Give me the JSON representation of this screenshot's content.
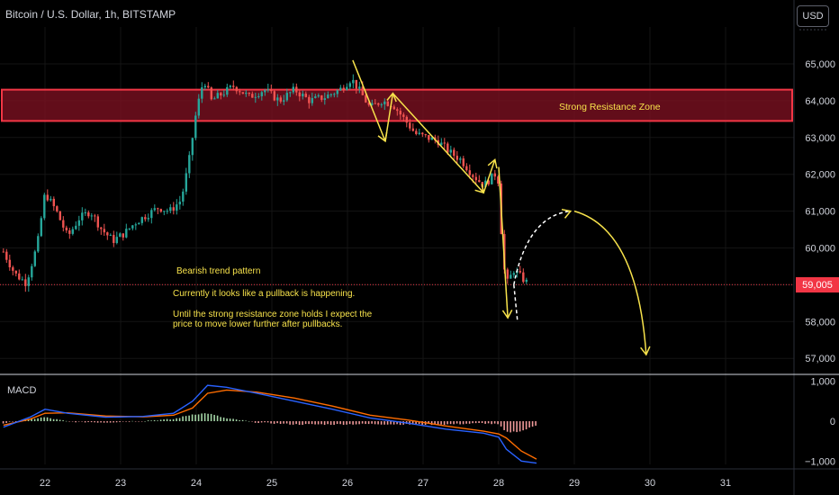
{
  "header": {
    "title": "Bitcoin / U.S. Dollar, 1h, BITSTAMP",
    "currency_button": "USD"
  },
  "annotations": {
    "zone_label": "Strong Resistance Zone",
    "pattern_title": "Bearish trend pattern",
    "line1": "Currently it looks like a pullback is happening.",
    "line2": "Until the strong resistance zone holds I expect the",
    "line3": "price to move lower further after pullbacks."
  },
  "last_price_label": "59,005",
  "macd_label": "MACD",
  "colors": {
    "up": "#26a69a",
    "down": "#ef5350",
    "zone_fill": "#7a1020",
    "zone_border": "#f23645",
    "annotation": "#f7e24b",
    "macd_line": "#2962ff",
    "signal_line": "#ff6d00",
    "last_price": "#f23645"
  },
  "chart_data": {
    "type": "candlestick",
    "price_axis": {
      "ticks": [
        65000,
        64000,
        63000,
        62000,
        61000,
        60000,
        59000,
        58000,
        57000
      ],
      "tick_labels": [
        "65,000",
        "64,000",
        "63,000",
        "62,000",
        "61,000",
        "60,000",
        "58,000",
        "57,000"
      ],
      "range": [
        56800,
        66000
      ]
    },
    "date_axis": {
      "labels": [
        "22",
        "23",
        "24",
        "25",
        "26",
        "27",
        "28",
        "29",
        "30",
        "31"
      ]
    },
    "last_price": 59005,
    "resistance_zone": [
      63450,
      64300
    ],
    "close_path": [
      [
        21.45,
        59900
      ],
      [
        21.6,
        59300
      ],
      [
        21.75,
        59050
      ],
      [
        21.9,
        60100
      ],
      [
        22.0,
        61500
      ],
      [
        22.15,
        61000
      ],
      [
        22.3,
        60300
      ],
      [
        22.45,
        60800
      ],
      [
        22.6,
        61000
      ],
      [
        22.75,
        60500
      ],
      [
        22.9,
        60200
      ],
      [
        23.05,
        60400
      ],
      [
        23.2,
        60700
      ],
      [
        23.35,
        60900
      ],
      [
        23.5,
        61100
      ],
      [
        23.65,
        61000
      ],
      [
        23.8,
        61300
      ],
      [
        23.9,
        62300
      ],
      [
        24.0,
        63700
      ],
      [
        24.1,
        64600
      ],
      [
        24.2,
        64000
      ],
      [
        24.35,
        64200
      ],
      [
        24.5,
        64400
      ],
      [
        24.7,
        64100
      ],
      [
        24.9,
        64300
      ],
      [
        25.1,
        64000
      ],
      [
        25.3,
        64300
      ],
      [
        25.5,
        64000
      ],
      [
        25.7,
        64100
      ],
      [
        25.9,
        64300
      ],
      [
        26.05,
        64600
      ],
      [
        26.15,
        64300
      ],
      [
        26.3,
        63800
      ],
      [
        26.45,
        64000
      ],
      [
        26.6,
        63900
      ],
      [
        26.75,
        63500
      ],
      [
        26.9,
        63100
      ],
      [
        27.05,
        63000
      ],
      [
        27.2,
        62900
      ],
      [
        27.35,
        62600
      ],
      [
        27.5,
        62400
      ],
      [
        27.65,
        62000
      ],
      [
        27.8,
        61700
      ],
      [
        27.95,
        62000
      ],
      [
        28.0,
        61800
      ],
      [
        28.05,
        59800
      ],
      [
        28.1,
        59000
      ],
      [
        28.2,
        59400
      ],
      [
        28.3,
        59200
      ],
      [
        28.4,
        59005
      ]
    ],
    "macd": {
      "axis_ticks": [
        1000,
        0,
        -1000
      ],
      "axis_labels": [
        "1,000",
        "0",
        "−1,000"
      ],
      "range": [
        -1150,
        1150
      ],
      "macd_line": [
        [
          21.45,
          -150
        ],
        [
          21.8,
          100
        ],
        [
          22.0,
          300
        ],
        [
          22.3,
          200
        ],
        [
          22.8,
          100
        ],
        [
          23.3,
          120
        ],
        [
          23.7,
          200
        ],
        [
          23.95,
          500
        ],
        [
          24.15,
          900
        ],
        [
          24.4,
          850
        ],
        [
          24.8,
          700
        ],
        [
          25.3,
          500
        ],
        [
          25.8,
          300
        ],
        [
          26.3,
          80
        ],
        [
          26.8,
          -50
        ],
        [
          27.3,
          -200
        ],
        [
          27.8,
          -300
        ],
        [
          28.0,
          -400
        ],
        [
          28.1,
          -700
        ],
        [
          28.3,
          -1000
        ],
        [
          28.5,
          -1050
        ]
      ],
      "signal_line": [
        [
          21.45,
          -100
        ],
        [
          21.8,
          50
        ],
        [
          22.0,
          200
        ],
        [
          22.3,
          210
        ],
        [
          22.8,
          130
        ],
        [
          23.3,
          110
        ],
        [
          23.7,
          150
        ],
        [
          23.95,
          330
        ],
        [
          24.15,
          700
        ],
        [
          24.4,
          780
        ],
        [
          24.8,
          730
        ],
        [
          25.3,
          580
        ],
        [
          25.8,
          380
        ],
        [
          26.3,
          150
        ],
        [
          26.8,
          30
        ],
        [
          27.3,
          -120
        ],
        [
          27.8,
          -250
        ],
        [
          28.0,
          -320
        ],
        [
          28.1,
          -420
        ],
        [
          28.3,
          -750
        ],
        [
          28.5,
          -950
        ]
      ],
      "histogram": [
        [
          21.45,
          -50
        ],
        [
          21.8,
          50
        ],
        [
          22.0,
          100
        ],
        [
          22.3,
          -10
        ],
        [
          22.8,
          -30
        ],
        [
          23.3,
          10
        ],
        [
          23.7,
          50
        ],
        [
          23.95,
          170
        ],
        [
          24.15,
          200
        ],
        [
          24.4,
          70
        ],
        [
          24.8,
          -30
        ],
        [
          25.3,
          -80
        ],
        [
          25.8,
          -80
        ],
        [
          26.3,
          -70
        ],
        [
          26.8,
          -80
        ],
        [
          27.3,
          -80
        ],
        [
          27.8,
          -50
        ],
        [
          28.0,
          -80
        ],
        [
          28.1,
          -280
        ],
        [
          28.3,
          -250
        ],
        [
          28.5,
          -100
        ]
      ]
    }
  }
}
